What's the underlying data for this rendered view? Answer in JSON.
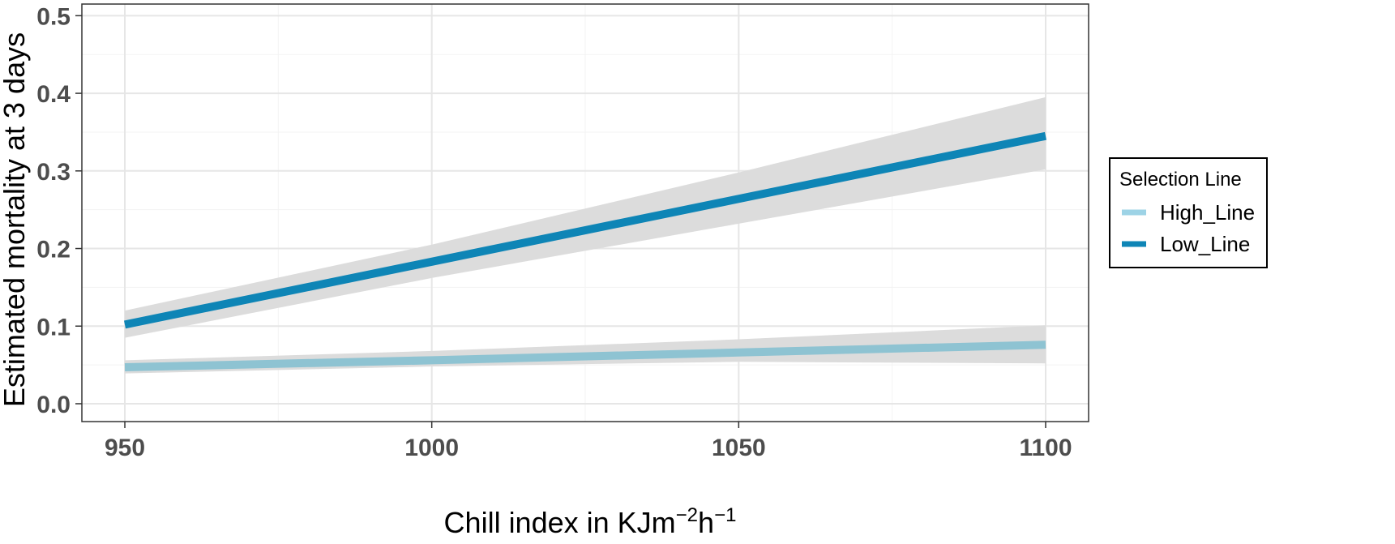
{
  "chart_data": {
    "type": "line",
    "title": "",
    "xlabel": "Chill index in KJm",
    "xlabel_sup1": "−2",
    "xlabel_mid": "h",
    "xlabel_sup2": "−1",
    "ylabel": "Estimated mortality at 3 days",
    "xlim": [
      943,
      1107
    ],
    "ylim": [
      -0.023,
      0.515
    ],
    "x_ticks": [
      950,
      1000,
      1050,
      1100
    ],
    "x_tick_labels": [
      "950",
      "1000",
      "1050",
      "1100"
    ],
    "y_ticks": [
      0.0,
      0.1,
      0.2,
      0.3,
      0.4,
      0.5
    ],
    "y_tick_labels": [
      "0.0",
      "0.1",
      "0.2",
      "0.3",
      "0.4",
      "0.5"
    ],
    "grid": true,
    "legend": {
      "title": "Selection Line",
      "placement": "right"
    },
    "series": [
      {
        "name": "High_Line",
        "color": "#8ec3d2",
        "legend_color": "#9dd3e6",
        "x": [
          950,
          1000,
          1050,
          1100
        ],
        "y": [
          0.047,
          0.056,
          0.066,
          0.076
        ],
        "lower": [
          0.039,
          0.048,
          0.054,
          0.052
        ],
        "upper": [
          0.056,
          0.068,
          0.083,
          0.101
        ]
      },
      {
        "name": "Low_Line",
        "color": "#0e85b6",
        "legend_color": "#0e85b6",
        "x": [
          950,
          1000,
          1050,
          1100
        ],
        "y": [
          0.102,
          0.183,
          0.264,
          0.345
        ],
        "lower": [
          0.085,
          0.162,
          0.232,
          0.302
        ],
        "upper": [
          0.12,
          0.205,
          0.298,
          0.395
        ]
      }
    ],
    "ribbon_color": "#dcdcdc"
  }
}
